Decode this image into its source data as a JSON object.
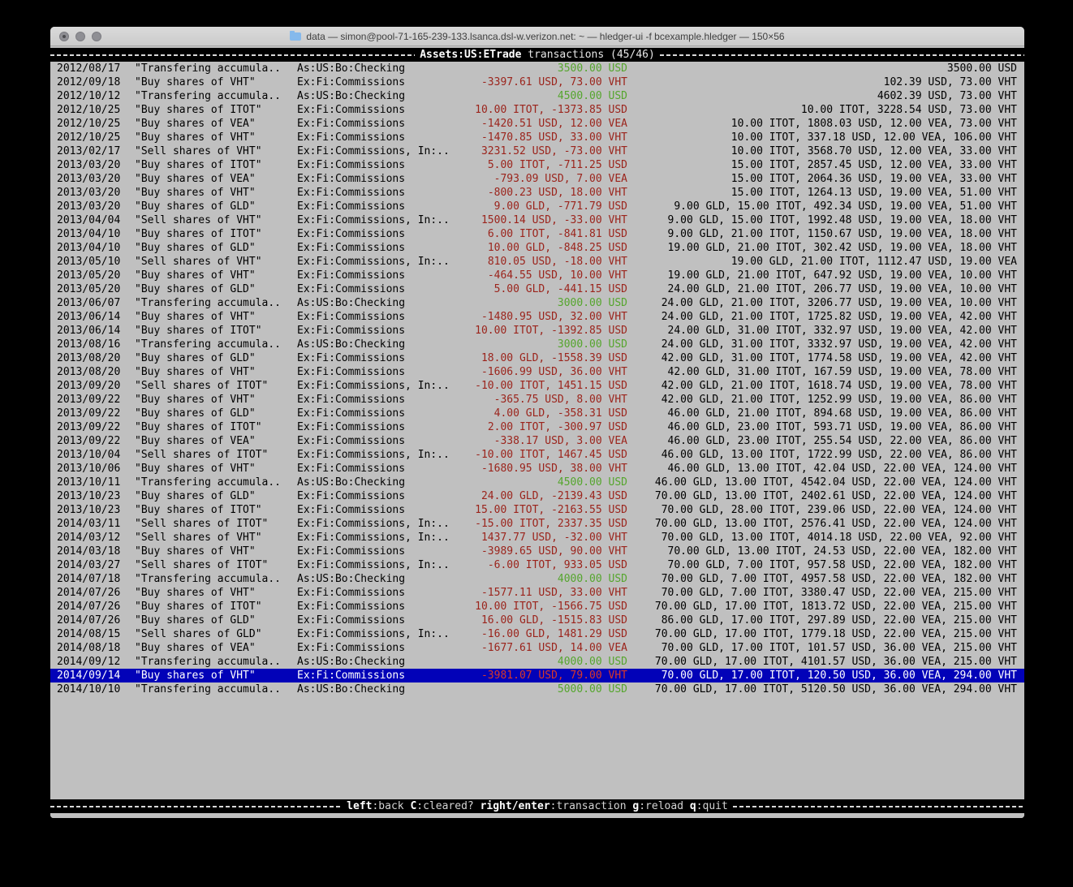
{
  "window": {
    "title": "data — simon@pool-71-165-239-133.lsanca.dsl-w.verizon.net: ~ — hledger-ui -f bcexample.hledger — 150×56"
  },
  "header": {
    "account": "Assets:US:ETrade",
    "suffix": "transactions (45/46)"
  },
  "footer": {
    "keys": [
      {
        "key": "left",
        "desc": ":back"
      },
      {
        "key": "C",
        "desc": ":cleared?"
      },
      {
        "key": "right/enter",
        "desc": ":transaction"
      },
      {
        "key": "g",
        "desc": ":reload"
      },
      {
        "key": "q",
        "desc": ":quit"
      }
    ]
  },
  "colors": {
    "selection_bg": "#0202b8",
    "amount_negative": "#9b241c",
    "amount_positive": "#55a52d",
    "terminal_bg": "#c0c0c0",
    "bar_bg": "#000000"
  },
  "transactions": [
    {
      "date": "2012/08/17",
      "desc": "\"Transfering accumula..",
      "acct": "As:US:Bo:Checking",
      "change": "3500.00 USD",
      "change_color": "green",
      "balance": "3500.00 USD",
      "selected": false
    },
    {
      "date": "2012/09/18",
      "desc": "\"Buy shares of VHT\"",
      "acct": "Ex:Fi:Commissions",
      "change": "-3397.61 USD, 73.00 VHT",
      "change_color": "red",
      "balance": "102.39 USD, 73.00 VHT",
      "selected": false
    },
    {
      "date": "2012/10/12",
      "desc": "\"Transfering accumula..",
      "acct": "As:US:Bo:Checking",
      "change": "4500.00 USD",
      "change_color": "green",
      "balance": "4602.39 USD, 73.00 VHT",
      "selected": false
    },
    {
      "date": "2012/10/25",
      "desc": "\"Buy shares of ITOT\"",
      "acct": "Ex:Fi:Commissions",
      "change": "10.00 ITOT, -1373.85 USD",
      "change_color": "red",
      "balance": "10.00 ITOT, 3228.54 USD, 73.00 VHT",
      "selected": false
    },
    {
      "date": "2012/10/25",
      "desc": "\"Buy shares of VEA\"",
      "acct": "Ex:Fi:Commissions",
      "change": "-1420.51 USD, 12.00 VEA",
      "change_color": "red",
      "balance": "10.00 ITOT, 1808.03 USD, 12.00 VEA, 73.00 VHT",
      "selected": false
    },
    {
      "date": "2012/10/25",
      "desc": "\"Buy shares of VHT\"",
      "acct": "Ex:Fi:Commissions",
      "change": "-1470.85 USD, 33.00 VHT",
      "change_color": "red",
      "balance": "10.00 ITOT, 337.18 USD, 12.00 VEA, 106.00 VHT",
      "selected": false
    },
    {
      "date": "2013/02/17",
      "desc": "\"Sell shares of VHT\"",
      "acct": "Ex:Fi:Commissions, In:..",
      "change": "3231.52 USD, -73.00 VHT",
      "change_color": "red",
      "balance": "10.00 ITOT, 3568.70 USD, 12.00 VEA, 33.00 VHT",
      "selected": false
    },
    {
      "date": "2013/03/20",
      "desc": "\"Buy shares of ITOT\"",
      "acct": "Ex:Fi:Commissions",
      "change": "5.00 ITOT, -711.25 USD",
      "change_color": "red",
      "balance": "15.00 ITOT, 2857.45 USD, 12.00 VEA, 33.00 VHT",
      "selected": false
    },
    {
      "date": "2013/03/20",
      "desc": "\"Buy shares of VEA\"",
      "acct": "Ex:Fi:Commissions",
      "change": "-793.09 USD, 7.00 VEA",
      "change_color": "red",
      "balance": "15.00 ITOT, 2064.36 USD, 19.00 VEA, 33.00 VHT",
      "selected": false
    },
    {
      "date": "2013/03/20",
      "desc": "\"Buy shares of VHT\"",
      "acct": "Ex:Fi:Commissions",
      "change": "-800.23 USD, 18.00 VHT",
      "change_color": "red",
      "balance": "15.00 ITOT, 1264.13 USD, 19.00 VEA, 51.00 VHT",
      "selected": false
    },
    {
      "date": "2013/03/20",
      "desc": "\"Buy shares of GLD\"",
      "acct": "Ex:Fi:Commissions",
      "change": "9.00 GLD, -771.79 USD",
      "change_color": "red",
      "balance": "9.00 GLD, 15.00 ITOT, 492.34 USD, 19.00 VEA, 51.00 VHT",
      "selected": false
    },
    {
      "date": "2013/04/04",
      "desc": "\"Sell shares of VHT\"",
      "acct": "Ex:Fi:Commissions, In:..",
      "change": "1500.14 USD, -33.00 VHT",
      "change_color": "red",
      "balance": "9.00 GLD, 15.00 ITOT, 1992.48 USD, 19.00 VEA, 18.00 VHT",
      "selected": false
    },
    {
      "date": "2013/04/10",
      "desc": "\"Buy shares of ITOT\"",
      "acct": "Ex:Fi:Commissions",
      "change": "6.00 ITOT, -841.81 USD",
      "change_color": "red",
      "balance": "9.00 GLD, 21.00 ITOT, 1150.67 USD, 19.00 VEA, 18.00 VHT",
      "selected": false
    },
    {
      "date": "2013/04/10",
      "desc": "\"Buy shares of GLD\"",
      "acct": "Ex:Fi:Commissions",
      "change": "10.00 GLD, -848.25 USD",
      "change_color": "red",
      "balance": "19.00 GLD, 21.00 ITOT, 302.42 USD, 19.00 VEA, 18.00 VHT",
      "selected": false
    },
    {
      "date": "2013/05/10",
      "desc": "\"Sell shares of VHT\"",
      "acct": "Ex:Fi:Commissions, In:..",
      "change": "810.05 USD, -18.00 VHT",
      "change_color": "red",
      "balance": "19.00 GLD, 21.00 ITOT, 1112.47 USD, 19.00 VEA",
      "selected": false
    },
    {
      "date": "2013/05/20",
      "desc": "\"Buy shares of VHT\"",
      "acct": "Ex:Fi:Commissions",
      "change": "-464.55 USD, 10.00 VHT",
      "change_color": "red",
      "balance": "19.00 GLD, 21.00 ITOT, 647.92 USD, 19.00 VEA, 10.00 VHT",
      "selected": false
    },
    {
      "date": "2013/05/20",
      "desc": "\"Buy shares of GLD\"",
      "acct": "Ex:Fi:Commissions",
      "change": "5.00 GLD, -441.15 USD",
      "change_color": "red",
      "balance": "24.00 GLD, 21.00 ITOT, 206.77 USD, 19.00 VEA, 10.00 VHT",
      "selected": false
    },
    {
      "date": "2013/06/07",
      "desc": "\"Transfering accumula..",
      "acct": "As:US:Bo:Checking",
      "change": "3000.00 USD",
      "change_color": "green",
      "balance": "24.00 GLD, 21.00 ITOT, 3206.77 USD, 19.00 VEA, 10.00 VHT",
      "selected": false
    },
    {
      "date": "2013/06/14",
      "desc": "\"Buy shares of VHT\"",
      "acct": "Ex:Fi:Commissions",
      "change": "-1480.95 USD, 32.00 VHT",
      "change_color": "red",
      "balance": "24.00 GLD, 21.00 ITOT, 1725.82 USD, 19.00 VEA, 42.00 VHT",
      "selected": false
    },
    {
      "date": "2013/06/14",
      "desc": "\"Buy shares of ITOT\"",
      "acct": "Ex:Fi:Commissions",
      "change": "10.00 ITOT, -1392.85 USD",
      "change_color": "red",
      "balance": "24.00 GLD, 31.00 ITOT, 332.97 USD, 19.00 VEA, 42.00 VHT",
      "selected": false
    },
    {
      "date": "2013/08/16",
      "desc": "\"Transfering accumula..",
      "acct": "As:US:Bo:Checking",
      "change": "3000.00 USD",
      "change_color": "green",
      "balance": "24.00 GLD, 31.00 ITOT, 3332.97 USD, 19.00 VEA, 42.00 VHT",
      "selected": false
    },
    {
      "date": "2013/08/20",
      "desc": "\"Buy shares of GLD\"",
      "acct": "Ex:Fi:Commissions",
      "change": "18.00 GLD, -1558.39 USD",
      "change_color": "red",
      "balance": "42.00 GLD, 31.00 ITOT, 1774.58 USD, 19.00 VEA, 42.00 VHT",
      "selected": false
    },
    {
      "date": "2013/08/20",
      "desc": "\"Buy shares of VHT\"",
      "acct": "Ex:Fi:Commissions",
      "change": "-1606.99 USD, 36.00 VHT",
      "change_color": "red",
      "balance": "42.00 GLD, 31.00 ITOT, 167.59 USD, 19.00 VEA, 78.00 VHT",
      "selected": false
    },
    {
      "date": "2013/09/20",
      "desc": "\"Sell shares of ITOT\"",
      "acct": "Ex:Fi:Commissions, In:..",
      "change": "-10.00 ITOT, 1451.15 USD",
      "change_color": "red",
      "balance": "42.00 GLD, 21.00 ITOT, 1618.74 USD, 19.00 VEA, 78.00 VHT",
      "selected": false
    },
    {
      "date": "2013/09/22",
      "desc": "\"Buy shares of VHT\"",
      "acct": "Ex:Fi:Commissions",
      "change": "-365.75 USD, 8.00 VHT",
      "change_color": "red",
      "balance": "42.00 GLD, 21.00 ITOT, 1252.99 USD, 19.00 VEA, 86.00 VHT",
      "selected": false
    },
    {
      "date": "2013/09/22",
      "desc": "\"Buy shares of GLD\"",
      "acct": "Ex:Fi:Commissions",
      "change": "4.00 GLD, -358.31 USD",
      "change_color": "red",
      "balance": "46.00 GLD, 21.00 ITOT, 894.68 USD, 19.00 VEA, 86.00 VHT",
      "selected": false
    },
    {
      "date": "2013/09/22",
      "desc": "\"Buy shares of ITOT\"",
      "acct": "Ex:Fi:Commissions",
      "change": "2.00 ITOT, -300.97 USD",
      "change_color": "red",
      "balance": "46.00 GLD, 23.00 ITOT, 593.71 USD, 19.00 VEA, 86.00 VHT",
      "selected": false
    },
    {
      "date": "2013/09/22",
      "desc": "\"Buy shares of VEA\"",
      "acct": "Ex:Fi:Commissions",
      "change": "-338.17 USD, 3.00 VEA",
      "change_color": "red",
      "balance": "46.00 GLD, 23.00 ITOT, 255.54 USD, 22.00 VEA, 86.00 VHT",
      "selected": false
    },
    {
      "date": "2013/10/04",
      "desc": "\"Sell shares of ITOT\"",
      "acct": "Ex:Fi:Commissions, In:..",
      "change": "-10.00 ITOT, 1467.45 USD",
      "change_color": "red",
      "balance": "46.00 GLD, 13.00 ITOT, 1722.99 USD, 22.00 VEA, 86.00 VHT",
      "selected": false
    },
    {
      "date": "2013/10/06",
      "desc": "\"Buy shares of VHT\"",
      "acct": "Ex:Fi:Commissions",
      "change": "-1680.95 USD, 38.00 VHT",
      "change_color": "red",
      "balance": "46.00 GLD, 13.00 ITOT, 42.04 USD, 22.00 VEA, 124.00 VHT",
      "selected": false
    },
    {
      "date": "2013/10/11",
      "desc": "\"Transfering accumula..",
      "acct": "As:US:Bo:Checking",
      "change": "4500.00 USD",
      "change_color": "green",
      "balance": "46.00 GLD, 13.00 ITOT, 4542.04 USD, 22.00 VEA, 124.00 VHT",
      "selected": false
    },
    {
      "date": "2013/10/23",
      "desc": "\"Buy shares of GLD\"",
      "acct": "Ex:Fi:Commissions",
      "change": "24.00 GLD, -2139.43 USD",
      "change_color": "red",
      "balance": "70.00 GLD, 13.00 ITOT, 2402.61 USD, 22.00 VEA, 124.00 VHT",
      "selected": false
    },
    {
      "date": "2013/10/23",
      "desc": "\"Buy shares of ITOT\"",
      "acct": "Ex:Fi:Commissions",
      "change": "15.00 ITOT, -2163.55 USD",
      "change_color": "red",
      "balance": "70.00 GLD, 28.00 ITOT, 239.06 USD, 22.00 VEA, 124.00 VHT",
      "selected": false
    },
    {
      "date": "2014/03/11",
      "desc": "\"Sell shares of ITOT\"",
      "acct": "Ex:Fi:Commissions, In:..",
      "change": "-15.00 ITOT, 2337.35 USD",
      "change_color": "red",
      "balance": "70.00 GLD, 13.00 ITOT, 2576.41 USD, 22.00 VEA, 124.00 VHT",
      "selected": false
    },
    {
      "date": "2014/03/12",
      "desc": "\"Sell shares of VHT\"",
      "acct": "Ex:Fi:Commissions, In:..",
      "change": "1437.77 USD, -32.00 VHT",
      "change_color": "red",
      "balance": "70.00 GLD, 13.00 ITOT, 4014.18 USD, 22.00 VEA, 92.00 VHT",
      "selected": false
    },
    {
      "date": "2014/03/18",
      "desc": "\"Buy shares of VHT\"",
      "acct": "Ex:Fi:Commissions",
      "change": "-3989.65 USD, 90.00 VHT",
      "change_color": "red",
      "balance": "70.00 GLD, 13.00 ITOT, 24.53 USD, 22.00 VEA, 182.00 VHT",
      "selected": false
    },
    {
      "date": "2014/03/27",
      "desc": "\"Sell shares of ITOT\"",
      "acct": "Ex:Fi:Commissions, In:..",
      "change": "-6.00 ITOT, 933.05 USD",
      "change_color": "red",
      "balance": "70.00 GLD, 7.00 ITOT, 957.58 USD, 22.00 VEA, 182.00 VHT",
      "selected": false
    },
    {
      "date": "2014/07/18",
      "desc": "\"Transfering accumula..",
      "acct": "As:US:Bo:Checking",
      "change": "4000.00 USD",
      "change_color": "green",
      "balance": "70.00 GLD, 7.00 ITOT, 4957.58 USD, 22.00 VEA, 182.00 VHT",
      "selected": false
    },
    {
      "date": "2014/07/26",
      "desc": "\"Buy shares of VHT\"",
      "acct": "Ex:Fi:Commissions",
      "change": "-1577.11 USD, 33.00 VHT",
      "change_color": "red",
      "balance": "70.00 GLD, 7.00 ITOT, 3380.47 USD, 22.00 VEA, 215.00 VHT",
      "selected": false
    },
    {
      "date": "2014/07/26",
      "desc": "\"Buy shares of ITOT\"",
      "acct": "Ex:Fi:Commissions",
      "change": "10.00 ITOT, -1566.75 USD",
      "change_color": "red",
      "balance": "70.00 GLD, 17.00 ITOT, 1813.72 USD, 22.00 VEA, 215.00 VHT",
      "selected": false
    },
    {
      "date": "2014/07/26",
      "desc": "\"Buy shares of GLD\"",
      "acct": "Ex:Fi:Commissions",
      "change": "16.00 GLD, -1515.83 USD",
      "change_color": "red",
      "balance": "86.00 GLD, 17.00 ITOT, 297.89 USD, 22.00 VEA, 215.00 VHT",
      "selected": false
    },
    {
      "date": "2014/08/15",
      "desc": "\"Sell shares of GLD\"",
      "acct": "Ex:Fi:Commissions, In:..",
      "change": "-16.00 GLD, 1481.29 USD",
      "change_color": "red",
      "balance": "70.00 GLD, 17.00 ITOT, 1779.18 USD, 22.00 VEA, 215.00 VHT",
      "selected": false
    },
    {
      "date": "2014/08/18",
      "desc": "\"Buy shares of VEA\"",
      "acct": "Ex:Fi:Commissions",
      "change": "-1677.61 USD, 14.00 VEA",
      "change_color": "red",
      "balance": "70.00 GLD, 17.00 ITOT, 101.57 USD, 36.00 VEA, 215.00 VHT",
      "selected": false
    },
    {
      "date": "2014/09/12",
      "desc": "\"Transfering accumula..",
      "acct": "As:US:Bo:Checking",
      "change": "4000.00 USD",
      "change_color": "green",
      "balance": "70.00 GLD, 17.00 ITOT, 4101.57 USD, 36.00 VEA, 215.00 VHT",
      "selected": false
    },
    {
      "date": "2014/09/14",
      "desc": "\"Buy shares of VHT\"",
      "acct": "Ex:Fi:Commissions",
      "change": "-3981.07 USD, 79.00 VHT",
      "change_color": "red",
      "balance": "70.00 GLD, 17.00 ITOT, 120.50 USD, 36.00 VEA, 294.00 VHT",
      "selected": true
    },
    {
      "date": "2014/10/10",
      "desc": "\"Transfering accumula..",
      "acct": "As:US:Bo:Checking",
      "change": "5000.00 USD",
      "change_color": "green",
      "balance": "70.00 GLD, 17.00 ITOT, 5120.50 USD, 36.00 VEA, 294.00 VHT",
      "selected": false
    }
  ]
}
